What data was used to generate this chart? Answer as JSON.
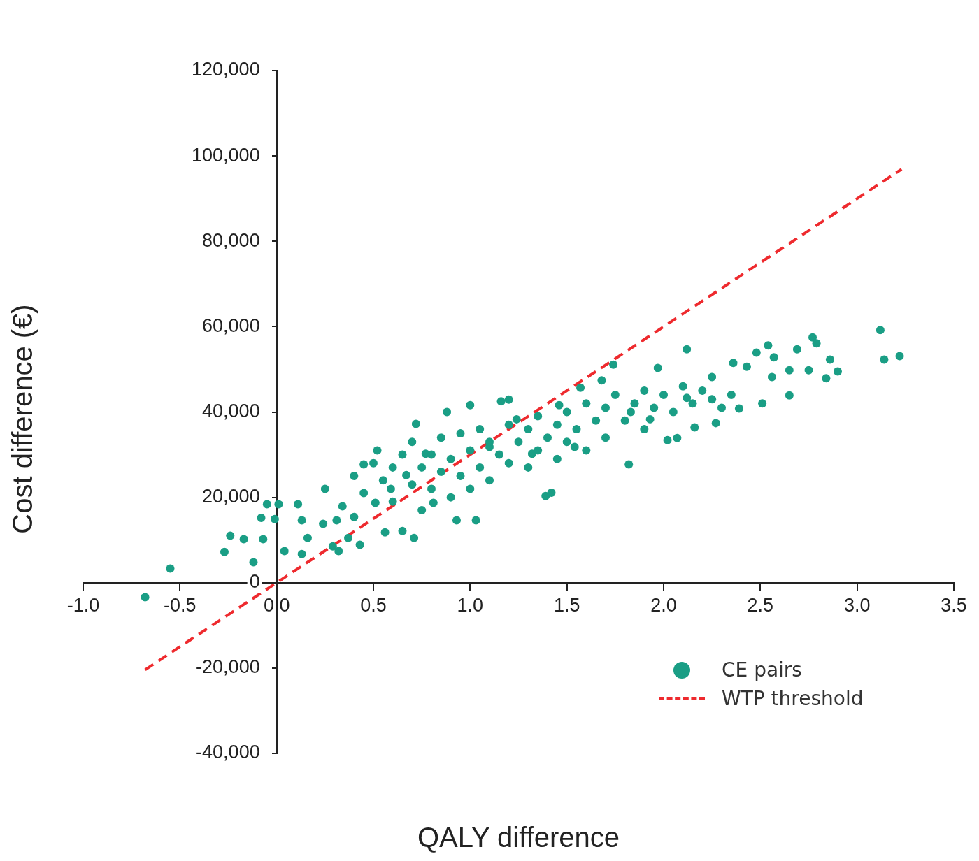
{
  "chart_data": {
    "type": "scatter",
    "xlabel": "QALY difference",
    "ylabel": "Cost difference (€)",
    "xlim": [
      -1,
      3.5
    ],
    "ylim": [
      -40000,
      120000
    ],
    "xticks": [
      {
        "value": -1,
        "label": "-1.0"
      },
      {
        "value": -0.5,
        "label": "-0.5"
      },
      {
        "value": 0,
        "label": "0.0"
      },
      {
        "value": 0.5,
        "label": "0.5"
      },
      {
        "value": 1,
        "label": "1.0"
      },
      {
        "value": 1.5,
        "label": "1.5"
      },
      {
        "value": 2,
        "label": "2.0"
      },
      {
        "value": 2.5,
        "label": "2.5"
      },
      {
        "value": 3,
        "label": "3.0"
      },
      {
        "value": 3.5,
        "label": "3.5"
      }
    ],
    "yticks": [
      {
        "value": -40000,
        "label": "-40,000"
      },
      {
        "value": -20000,
        "label": "-20,000"
      },
      0,
      {
        "value": 20000,
        "label": "20,000"
      },
      {
        "value": 40000,
        "label": "40,000"
      },
      {
        "value": 60000,
        "label": "60,000"
      },
      {
        "value": 80000,
        "label": "80,000"
      },
      {
        "value": 100000,
        "label": "100,000"
      },
      {
        "value": 120000,
        "label": "120,000"
      }
    ],
    "grid": false,
    "legend": "bottom right",
    "series": [
      {
        "name": "CE pairs",
        "color": "#1a9e85",
        "marker": "circle",
        "x": [
          -0.68,
          -0.55,
          -0.27,
          -0.24,
          -0.17,
          -0.07,
          -0.12,
          -0.08,
          -0.05,
          -0.01,
          0.01,
          0.04,
          0.11,
          0.13,
          0.13,
          0.16,
          0.24,
          0.25,
          0.29,
          0.32,
          0.31,
          0.34,
          0.37,
          0.43,
          0.4,
          0.45,
          0.52,
          0.51,
          0.56,
          0.59,
          0.65,
          0.71,
          0.72,
          0.67,
          0.77,
          0.81,
          0.88,
          0.93,
          1.0,
          1.03,
          1.1,
          1.16,
          1.2,
          1.24,
          1.32,
          1.39,
          1.42,
          1.46,
          1.57,
          1.54,
          1.68,
          1.74,
          1.82,
          1.83,
          1.93,
          1.97,
          2.02,
          2.07,
          2.12,
          2.12,
          2.16,
          2.25,
          2.27,
          2.36,
          2.39,
          2.43,
          2.48,
          2.51,
          2.54,
          2.56,
          2.57,
          2.65,
          2.65,
          2.69,
          2.75,
          2.77,
          2.79,
          2.84,
          2.86,
          2.9,
          3.12,
          3.14,
          3.22,
          0.4,
          0.45,
          0.5,
          0.55,
          0.6,
          0.6,
          0.65,
          0.7,
          0.7,
          0.75,
          0.75,
          0.8,
          0.8,
          0.85,
          0.85,
          0.9,
          0.9,
          0.95,
          0.95,
          1.0,
          1.0,
          1.05,
          1.05,
          1.1,
          1.1,
          1.15,
          1.2,
          1.2,
          1.25,
          1.3,
          1.3,
          1.35,
          1.35,
          1.4,
          1.45,
          1.45,
          1.5,
          1.5,
          1.55,
          1.6,
          1.6,
          1.65,
          1.7,
          1.7,
          1.75,
          1.8,
          1.85,
          1.9,
          1.9,
          1.95,
          2.0,
          2.05,
          2.1,
          2.15,
          2.2,
          2.25,
          2.3,
          2.35
        ],
        "values": [
          -3400,
          3300,
          7200,
          11000,
          10200,
          10200,
          4800,
          15200,
          18400,
          14900,
          18400,
          7400,
          18400,
          6700,
          14600,
          10500,
          13800,
          22000,
          8500,
          7400,
          14600,
          17900,
          10500,
          8900,
          15400,
          27700,
          31000,
          18700,
          11800,
          22000,
          12100,
          10500,
          37200,
          25200,
          30200,
          18700,
          40000,
          14600,
          41600,
          14600,
          31800,
          42500,
          42900,
          38300,
          30200,
          20300,
          21100,
          41600,
          45700,
          31800,
          47400,
          51100,
          27700,
          40000,
          38300,
          50300,
          33400,
          33900,
          54700,
          43300,
          36400,
          48200,
          37400,
          51500,
          40800,
          50600,
          53900,
          42000,
          55600,
          48200,
          52800,
          43900,
          49800,
          54700,
          49800,
          57500,
          56100,
          47900,
          52300,
          49500,
          59200,
          52300,
          53100,
          25000,
          21000,
          28000,
          24000,
          27000,
          19000,
          30000,
          23000,
          33000,
          27000,
          17000,
          30000,
          22000,
          34000,
          26000,
          29000,
          20000,
          35000,
          25000,
          31000,
          22000,
          36000,
          27000,
          33000,
          24000,
          30000,
          37000,
          28000,
          33000,
          36000,
          27000,
          39000,
          31000,
          34000,
          37000,
          29000,
          40000,
          33000,
          36000,
          42000,
          31000,
          38000,
          41000,
          34000,
          44000,
          38000,
          42000,
          45000,
          36000,
          41000,
          44000,
          40000,
          46000,
          42000,
          45000,
          43000,
          41000,
          44000
        ]
      },
      {
        "name": "WTP threshold",
        "type": "line",
        "color": "#ee2a2e",
        "marker": "none",
        "line_style": "dashed",
        "x": [
          -0.68,
          3.23
        ],
        "values": [
          -20400,
          96900
        ]
      }
    ]
  }
}
